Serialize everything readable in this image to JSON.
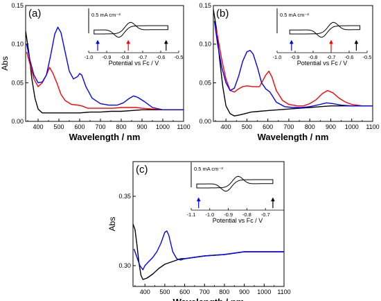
{
  "chart_data": [
    {
      "type": "line",
      "panel_label": "(a)",
      "xlabel": "Wavelength / nm",
      "ylabel": "Abs",
      "xlim": [
        340,
        1100
      ],
      "ylim": [
        0.0,
        0.15
      ],
      "xticks": [
        400,
        500,
        600,
        700,
        800,
        900,
        1000,
        1100
      ],
      "yticks": [
        0.0,
        0.05,
        0.1,
        0.15
      ],
      "ytick_labels": [
        "0.00",
        "0.05",
        "0.10",
        "0.15"
      ],
      "series": [
        {
          "color": "#000000",
          "points": [
            [
              340,
              0.117
            ],
            [
              355,
              0.09
            ],
            [
              370,
              0.055
            ],
            [
              385,
              0.03
            ],
            [
              400,
              0.016
            ],
            [
              420,
              0.011
            ],
            [
              450,
              0.011
            ],
            [
              500,
              0.011
            ],
            [
              550,
              0.011
            ],
            [
              600,
              0.011
            ],
            [
              650,
              0.012
            ],
            [
              700,
              0.012
            ],
            [
              750,
              0.013
            ],
            [
              800,
              0.013
            ],
            [
              850,
              0.014
            ],
            [
              900,
              0.015
            ],
            [
              950,
              0.015
            ],
            [
              1000,
              0.015
            ],
            [
              1050,
              0.015
            ],
            [
              1100,
              0.015
            ]
          ]
        },
        {
          "color": "#ff0000",
          "points": [
            [
              345,
              0.09
            ],
            [
              360,
              0.075
            ],
            [
              380,
              0.055
            ],
            [
              400,
              0.045
            ],
            [
              420,
              0.05
            ],
            [
              440,
              0.06
            ],
            [
              455,
              0.07
            ],
            [
              470,
              0.063
            ],
            [
              490,
              0.05
            ],
            [
              510,
              0.035
            ],
            [
              530,
              0.027
            ],
            [
              560,
              0.022
            ],
            [
              590,
              0.021
            ],
            [
              610,
              0.02
            ],
            [
              640,
              0.017
            ],
            [
              680,
              0.017
            ],
            [
              720,
              0.017
            ],
            [
              760,
              0.017
            ],
            [
              800,
              0.018
            ],
            [
              840,
              0.018
            ],
            [
              870,
              0.018
            ],
            [
              900,
              0.017
            ],
            [
              950,
              0.016
            ],
            [
              1000,
              0.015
            ],
            [
              1050,
              0.015
            ],
            [
              1100,
              0.015
            ]
          ]
        },
        {
          "color": "#0000ff",
          "points": [
            [
              345,
              0.1
            ],
            [
              360,
              0.08
            ],
            [
              380,
              0.06
            ],
            [
              400,
              0.05
            ],
            [
              420,
              0.051
            ],
            [
              440,
              0.06
            ],
            [
              460,
              0.085
            ],
            [
              480,
              0.113
            ],
            [
              495,
              0.122
            ],
            [
              510,
              0.115
            ],
            [
              530,
              0.09
            ],
            [
              550,
              0.065
            ],
            [
              570,
              0.055
            ],
            [
              590,
              0.058
            ],
            [
              600,
              0.062
            ],
            [
              610,
              0.06
            ],
            [
              630,
              0.045
            ],
            [
              660,
              0.03
            ],
            [
              700,
              0.023
            ],
            [
              740,
              0.021
            ],
            [
              780,
              0.021
            ],
            [
              810,
              0.024
            ],
            [
              840,
              0.03
            ],
            [
              860,
              0.033
            ],
            [
              880,
              0.031
            ],
            [
              910,
              0.026
            ],
            [
              950,
              0.018
            ],
            [
              1000,
              0.015
            ],
            [
              1050,
              0.015
            ],
            [
              1100,
              0.015
            ]
          ]
        }
      ],
      "inset": {
        "scale_label": "0.5 mA cm⁻²",
        "xlabel": "Potential vs Fc / V",
        "xlim": [
          -1.0,
          -0.5
        ],
        "xticks": [
          -1.0,
          -0.9,
          -0.8,
          -0.7,
          -0.6,
          -0.5
        ],
        "xtick_labels": [
          "-1.0",
          "-0.9",
          "-0.8",
          "-0.7",
          "-0.6",
          "-0.5"
        ],
        "e_half": -0.8,
        "potential_range": [
          -0.97,
          -0.56
        ],
        "arrows": [
          {
            "color": "#0000ff",
            "x": -0.95
          },
          {
            "color": "#ff0000",
            "x": -0.78
          },
          {
            "color": "#000000",
            "x": -0.57
          }
        ]
      }
    },
    {
      "type": "line",
      "panel_label": "(b)",
      "xlabel": "Wavelength / nm",
      "ylabel": "",
      "xlim": [
        340,
        1100
      ],
      "ylim": [
        0.0,
        0.15
      ],
      "xticks": [
        400,
        500,
        600,
        700,
        800,
        900,
        1000,
        1100
      ],
      "yticks": [
        0.0,
        0.05,
        0.1,
        0.15
      ],
      "ytick_labels": [
        "0.00",
        "0.05",
        "0.10",
        "0.15"
      ],
      "series": [
        {
          "color": "#000000",
          "points": [
            [
              340,
              0.145
            ],
            [
              355,
              0.12
            ],
            [
              370,
              0.08
            ],
            [
              385,
              0.045
            ],
            [
              400,
              0.02
            ],
            [
              420,
              0.01
            ],
            [
              440,
              0.007
            ],
            [
              460,
              0.008
            ],
            [
              490,
              0.01
            ],
            [
              520,
              0.012
            ],
            [
              560,
              0.013
            ],
            [
              600,
              0.014
            ],
            [
              650,
              0.015
            ],
            [
              700,
              0.016
            ],
            [
              750,
              0.017
            ],
            [
              800,
              0.018
            ],
            [
              850,
              0.019
            ],
            [
              900,
              0.02
            ],
            [
              950,
              0.02
            ],
            [
              1000,
              0.02
            ],
            [
              1050,
              0.02
            ],
            [
              1100,
              0.02
            ]
          ]
        },
        {
          "color": "#ff0000",
          "points": [
            [
              345,
              0.13
            ],
            [
              360,
              0.11
            ],
            [
              380,
              0.08
            ],
            [
              400,
              0.055
            ],
            [
              420,
              0.04
            ],
            [
              440,
              0.038
            ],
            [
              460,
              0.042
            ],
            [
              480,
              0.045
            ],
            [
              500,
              0.046
            ],
            [
              530,
              0.045
            ],
            [
              560,
              0.045
            ],
            [
              590,
              0.06
            ],
            [
              605,
              0.065
            ],
            [
              620,
              0.057
            ],
            [
              640,
              0.04
            ],
            [
              670,
              0.027
            ],
            [
              700,
              0.022
            ],
            [
              740,
              0.02
            ],
            [
              770,
              0.02
            ],
            [
              800,
              0.023
            ],
            [
              830,
              0.028
            ],
            [
              860,
              0.036
            ],
            [
              885,
              0.04
            ],
            [
              910,
              0.037
            ],
            [
              940,
              0.03
            ],
            [
              970,
              0.025
            ],
            [
              1000,
              0.022
            ],
            [
              1050,
              0.02
            ],
            [
              1100,
              0.02
            ]
          ]
        },
        {
          "color": "#0000ff",
          "points": [
            [
              345,
              0.13
            ],
            [
              360,
              0.1
            ],
            [
              380,
              0.07
            ],
            [
              400,
              0.05
            ],
            [
              420,
              0.04
            ],
            [
              440,
              0.043
            ],
            [
              460,
              0.058
            ],
            [
              480,
              0.078
            ],
            [
              500,
              0.09
            ],
            [
              515,
              0.092
            ],
            [
              530,
              0.087
            ],
            [
              550,
              0.07
            ],
            [
              570,
              0.05
            ],
            [
              590,
              0.042
            ],
            [
              610,
              0.038
            ],
            [
              640,
              0.025
            ],
            [
              680,
              0.019
            ],
            [
              720,
              0.018
            ],
            [
              760,
              0.018
            ],
            [
              800,
              0.019
            ],
            [
              850,
              0.022
            ],
            [
              880,
              0.024
            ],
            [
              910,
              0.023
            ],
            [
              950,
              0.021
            ],
            [
              1000,
              0.02
            ],
            [
              1050,
              0.02
            ],
            [
              1100,
              0.02
            ]
          ]
        }
      ],
      "inset": {
        "scale_label": "0.5 mA cm⁻²",
        "xlabel": "Potential vs Fc / V",
        "xlim": [
          -1.0,
          -0.5
        ],
        "xticks": [
          -1.0,
          -0.9,
          -0.8,
          -0.7,
          -0.6,
          -0.5
        ],
        "xtick_labels": [
          "-1.0",
          "-0.9",
          "-0.8",
          "-0.7",
          "-0.6",
          "-0.5"
        ],
        "e_half": -0.72,
        "potential_range": [
          -0.93,
          -0.54
        ],
        "arrows": [
          {
            "color": "#0000ff",
            "x": -0.92
          },
          {
            "color": "#ff0000",
            "x": -0.7
          },
          {
            "color": "#000000",
            "x": -0.56
          }
        ]
      }
    },
    {
      "type": "line",
      "panel_label": "(c)",
      "xlabel": "Wavelength / nm",
      "ylabel": "Abs",
      "xlim": [
        340,
        1100
      ],
      "ylim": [
        0.285,
        0.375
      ],
      "xticks": [
        400,
        500,
        600,
        700,
        800,
        900,
        1000,
        1100
      ],
      "yticks": [
        0.3,
        0.35
      ],
      "ytick_labels": [
        "0.30",
        "0.35"
      ],
      "series": [
        {
          "color": "#000000",
          "points": [
            [
              340,
              0.33
            ],
            [
              350,
              0.326
            ],
            [
              360,
              0.315
            ],
            [
              370,
              0.302
            ],
            [
              380,
              0.293
            ],
            [
              390,
              0.29
            ],
            [
              410,
              0.291
            ],
            [
              440,
              0.294
            ],
            [
              470,
              0.298
            ],
            [
              500,
              0.301
            ],
            [
              520,
              0.302
            ],
            [
              540,
              0.303
            ],
            [
              560,
              0.304
            ],
            [
              580,
              0.305
            ],
            [
              600,
              0.305
            ],
            [
              650,
              0.306
            ],
            [
              700,
              0.307
            ],
            [
              800,
              0.308
            ],
            [
              900,
              0.31
            ],
            [
              1000,
              0.31
            ],
            [
              1100,
              0.31
            ]
          ]
        },
        {
          "color": "#0000ff",
          "points": [
            [
              345,
              0.312
            ],
            [
              360,
              0.306
            ],
            [
              375,
              0.3
            ],
            [
              390,
              0.297
            ],
            [
              400,
              0.3
            ],
            [
              420,
              0.303
            ],
            [
              440,
              0.306
            ],
            [
              460,
              0.31
            ],
            [
              480,
              0.316
            ],
            [
              500,
              0.324
            ],
            [
              510,
              0.325
            ],
            [
              520,
              0.322
            ],
            [
              540,
              0.31
            ],
            [
              560,
              0.305
            ],
            [
              580,
              0.304
            ],
            [
              600,
              0.305
            ],
            [
              650,
              0.306
            ],
            [
              700,
              0.307
            ],
            [
              800,
              0.308
            ],
            [
              900,
              0.31
            ],
            [
              1000,
              0.31
            ],
            [
              1100,
              0.31
            ]
          ]
        }
      ],
      "inset": {
        "scale_label": "0.5 mA cm⁻²",
        "xlabel": "Potential vs Fc / V",
        "xlim": [
          -1.1,
          -0.6
        ],
        "xticks": [
          -1.1,
          -1.0,
          -0.9,
          -0.8,
          -0.7
        ],
        "xtick_labels": [
          "-1.1",
          "-1.0",
          "-0.9",
          "-0.8",
          "-0.7"
        ],
        "e_half": -0.88,
        "potential_range": [
          -1.07,
          -0.66
        ],
        "arrows": [
          {
            "color": "#0000ff",
            "x": -1.06
          },
          {
            "color": "#000000",
            "x": -0.66
          }
        ]
      }
    }
  ]
}
